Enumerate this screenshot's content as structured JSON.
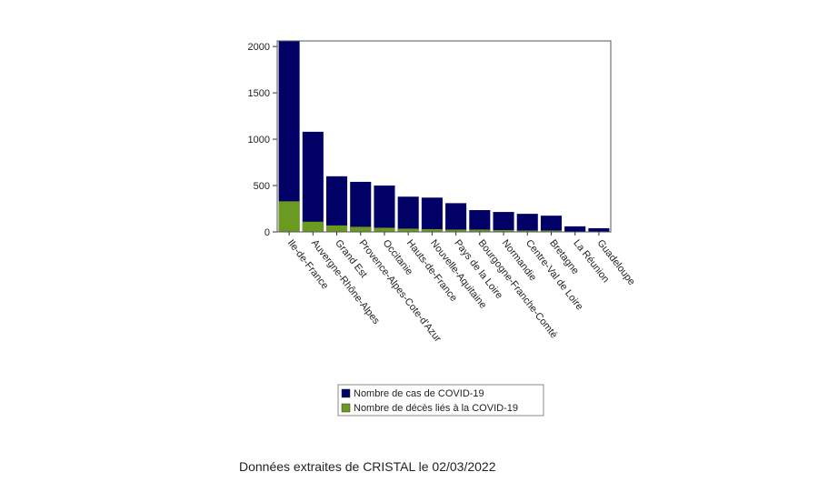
{
  "chart_data": {
    "type": "bar",
    "categories": [
      "Ile-de-France",
      "Auvergne-Rhône-Alpes",
      "Grand Est",
      "Provence-Alpes-Cote-d'Azur",
      "Occitanie",
      "Hauts-de-France",
      "Nouvelle-Aquitaine",
      "Pays de la Loire",
      "Bourgogne-Franche-Comté",
      "Normandie",
      "Centre-Val de Loire",
      "Bretagne",
      "La Réunion",
      "Guadeloupe"
    ],
    "series": [
      {
        "name": "Nombre de cas de COVID-19",
        "color": "#000066",
        "values": [
          2060,
          1080,
          600,
          540,
          500,
          380,
          370,
          310,
          235,
          215,
          195,
          175,
          60,
          40
        ]
      },
      {
        "name": "Nombre de décès liés à la COVID-19",
        "color": "#6a9a1f",
        "values": [
          330,
          110,
          70,
          55,
          45,
          35,
          30,
          25,
          25,
          20,
          15,
          15,
          5,
          5
        ]
      }
    ],
    "overlap": true,
    "ylim": [
      0,
      2060
    ],
    "yticks": [
      0,
      500,
      1000,
      1500,
      2000
    ],
    "grid": false,
    "legend": "bottom"
  },
  "source": "Données extraites de CRISTAL le 02/03/2022"
}
